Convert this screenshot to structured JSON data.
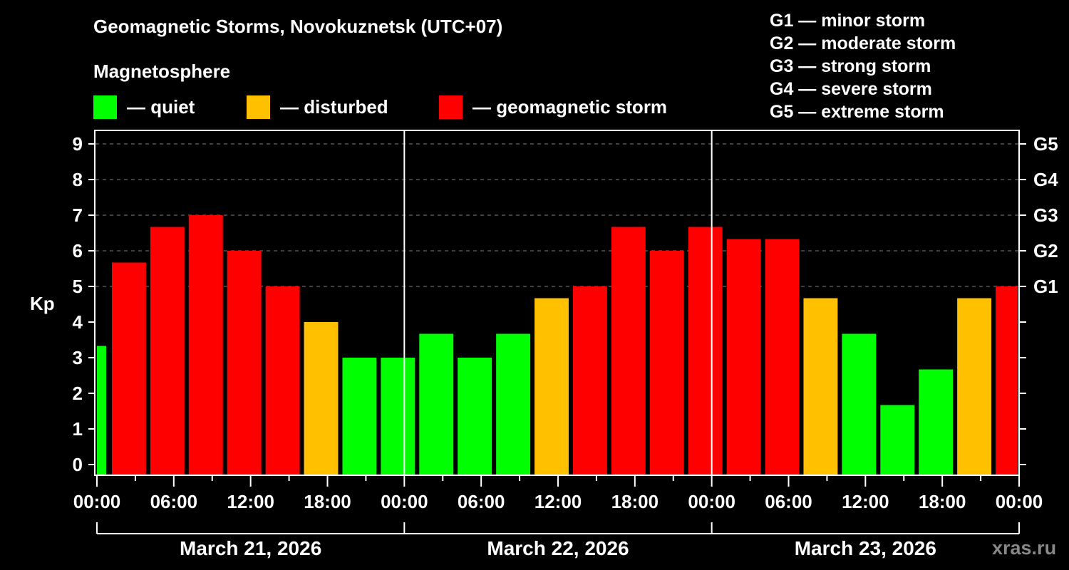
{
  "header": {
    "title": "Geomagnetic Storms, Novokuznetsk (UTC+07)",
    "subtitle": "Magnetosphere"
  },
  "legend": [
    {
      "label": "— quiet",
      "color": "#00ff00"
    },
    {
      "label": "— disturbed",
      "color": "#ffc000"
    },
    {
      "label": "— geomagnetic storm",
      "color": "#ff0000"
    }
  ],
  "storm_scale": [
    "G1 — minor storm",
    "G2 — moderate storm",
    "G3 — strong storm",
    "G4 — severe storm",
    "G5 — extreme storm"
  ],
  "axes": {
    "ylabel": "Kp",
    "yticks": [
      "0",
      "1",
      "2",
      "3",
      "4",
      "5",
      "6",
      "7",
      "8",
      "9"
    ],
    "gticks": [
      "G1",
      "G2",
      "G3",
      "G4",
      "G5"
    ],
    "xticks": [
      "00:00",
      "06:00",
      "12:00",
      "18:00",
      "00:00",
      "06:00",
      "12:00",
      "18:00",
      "00:00",
      "06:00",
      "12:00",
      "18:00",
      "00:00"
    ],
    "dates": [
      "March 21, 2026",
      "March 22, 2026",
      "March 23, 2026"
    ]
  },
  "watermark": "xras.ru",
  "colors": {
    "quiet": "#00ff00",
    "disturbed": "#ffc000",
    "storm": "#ff0000",
    "grid": "#808080",
    "axis": "#ffffff",
    "background": "#000000"
  },
  "chart_data": {
    "type": "bar",
    "title": "Geomagnetic Storms, Novokuznetsk (UTC+07)",
    "subtitle": "Magnetosphere",
    "xlabel": "",
    "ylabel": "Kp",
    "ylim": [
      0,
      9
    ],
    "secondary_yaxis": {
      "labels": [
        "G1",
        "G2",
        "G3",
        "G4",
        "G5"
      ],
      "at_kp": [
        5,
        6,
        7,
        8,
        9
      ]
    },
    "grid": "horizontal dashed at Kp 5-9",
    "legend_position": "top",
    "categories": [
      "Mar 20 22:00-Mar 21 01:00",
      "Mar 21 01:00",
      "Mar 21 04:00",
      "Mar 21 07:00",
      "Mar 21 10:00",
      "Mar 21 13:00",
      "Mar 21 16:00",
      "Mar 21 19:00",
      "Mar 21 22:00",
      "Mar 22 01:00",
      "Mar 22 04:00",
      "Mar 22 07:00",
      "Mar 22 10:00",
      "Mar 22 13:00",
      "Mar 22 16:00",
      "Mar 22 19:00",
      "Mar 22 22:00",
      "Mar 23 01:00",
      "Mar 23 04:00",
      "Mar 23 07:00",
      "Mar 23 10:00",
      "Mar 23 13:00",
      "Mar 23 16:00",
      "Mar 23 19:00",
      "Mar 23 22:00"
    ],
    "values": [
      3.33,
      5.67,
      6.67,
      7.0,
      6.0,
      5.0,
      4.0,
      3.0,
      3.0,
      3.67,
      3.0,
      3.67,
      4.67,
      5.0,
      6.67,
      6.0,
      6.67,
      6.33,
      6.33,
      4.67,
      3.67,
      1.67,
      2.67,
      4.67,
      5.0
    ],
    "levels": [
      "quiet",
      "storm",
      "storm",
      "storm",
      "storm",
      "storm",
      "disturbed",
      "quiet",
      "quiet",
      "quiet",
      "quiet",
      "quiet",
      "disturbed",
      "storm",
      "storm",
      "storm",
      "storm",
      "storm",
      "storm",
      "disturbed",
      "quiet",
      "quiet",
      "quiet",
      "disturbed",
      "storm"
    ],
    "legend": [
      "quiet",
      "disturbed",
      "geomagnetic storm"
    ]
  }
}
